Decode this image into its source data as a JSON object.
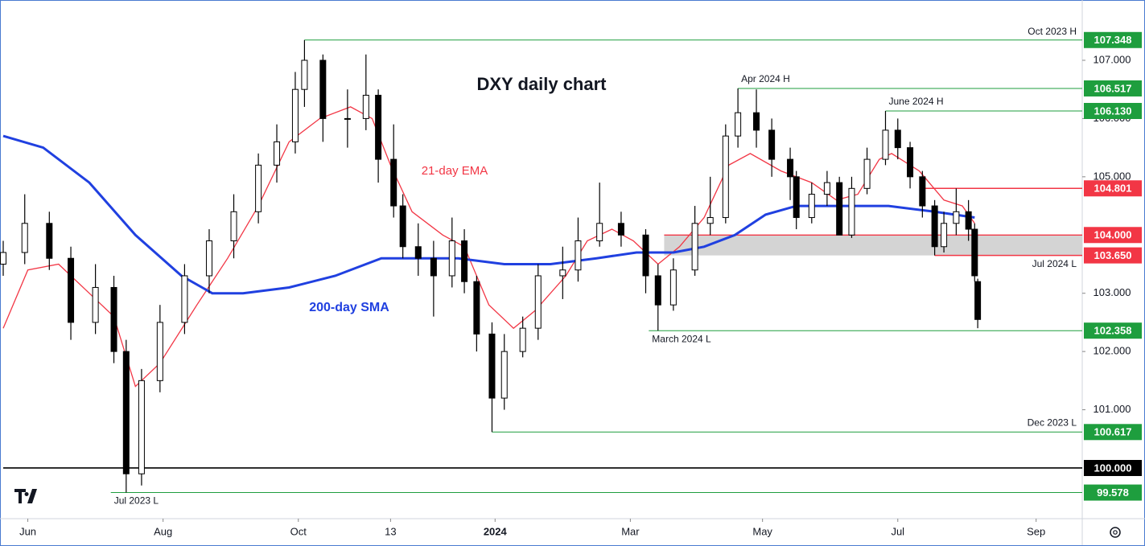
{
  "chart_data": {
    "type": "candlestick",
    "title": "DXY daily chart",
    "xlim": [
      -8,
      343
    ],
    "ylim": [
      99.13,
      107.98
    ],
    "xticks": [
      {
        "value": 0,
        "label": "Jun"
      },
      {
        "value": 44,
        "label": "Aug"
      },
      {
        "value": 88,
        "label": "Oct"
      },
      {
        "value": 118,
        "label": "13"
      },
      {
        "value": 152,
        "label": "2024"
      },
      {
        "value": 196,
        "label": "Mar"
      },
      {
        "value": 239,
        "label": "May"
      },
      {
        "value": 283,
        "label": "Jul"
      },
      {
        "value": 328,
        "label": "Sep"
      }
    ],
    "yticks": [
      {
        "value": 101,
        "label": "101.000"
      },
      {
        "value": 102,
        "label": "102.000"
      },
      {
        "value": 103,
        "label": "103.000"
      },
      {
        "value": 105,
        "label": "105.000"
      },
      {
        "value": 106,
        "label": "106.000"
      },
      {
        "value": 107,
        "label": "107.000"
      }
    ],
    "up_color": "#ffffff",
    "down_color": "#000000",
    "x": [
      -8,
      -1,
      7,
      14,
      22,
      28,
      32,
      37,
      43,
      51,
      59,
      67,
      75,
      81,
      87,
      90,
      96,
      104,
      110,
      114,
      119,
      122,
      127,
      132,
      138,
      142,
      146,
      151,
      155,
      161,
      166,
      174,
      179,
      186,
      193,
      201,
      205,
      210,
      217,
      222,
      227,
      231,
      237,
      242,
      248,
      250,
      255,
      260,
      264,
      268,
      273,
      279,
      283,
      287,
      291,
      295,
      298,
      302,
      306,
      308,
      309
    ],
    "open": [
      103.5,
      103.7,
      104.2,
      103.6,
      102.5,
      103.1,
      102.0,
      99.9,
      101.5,
      102.5,
      103.3,
      103.9,
      104.4,
      105.2,
      105.6,
      106.5,
      107.0,
      106.0,
      106.0,
      106.4,
      105.3,
      104.5,
      103.8,
      103.6,
      103.3,
      103.9,
      103.2,
      102.3,
      101.2,
      102.0,
      102.4,
      103.3,
      103.4,
      103.9,
      104.2,
      104.0,
      103.3,
      102.8,
      103.4,
      104.2,
      104.3,
      105.7,
      106.1,
      105.8,
      105.3,
      105.0,
      104.3,
      104.7,
      104.9,
      104.0,
      104.8,
      105.3,
      105.8,
      105.5,
      105.0,
      104.5,
      103.8,
      104.2,
      104.4,
      104.1,
      103.2
    ],
    "high": [
      103.9,
      104.7,
      104.4,
      103.8,
      103.5,
      103.3,
      102.2,
      101.7,
      102.8,
      103.5,
      104.1,
      104.7,
      105.4,
      105.9,
      106.8,
      107.348,
      107.1,
      106.5,
      107.1,
      106.5,
      105.9,
      104.7,
      104.2,
      103.9,
      104.3,
      104.1,
      103.3,
      102.5,
      102.3,
      102.6,
      103.5,
      103.8,
      104.3,
      104.9,
      104.4,
      104.1,
      103.5,
      103.6,
      104.5,
      105.0,
      105.9,
      106.517,
      106.5,
      106.0,
      105.5,
      105.1,
      104.9,
      105.1,
      105.0,
      105.0,
      105.5,
      106.13,
      106.0,
      105.6,
      105.1,
      104.6,
      104.4,
      104.8,
      104.6,
      104.2,
      103.25
    ],
    "low": [
      103.3,
      103.5,
      103.4,
      102.2,
      102.3,
      101.8,
      99.578,
      99.7,
      101.3,
      102.3,
      103.0,
      103.6,
      104.2,
      104.9,
      105.4,
      106.2,
      105.6,
      105.5,
      105.8,
      104.9,
      104.3,
      103.6,
      103.3,
      102.6,
      103.1,
      103.0,
      102.0,
      100.617,
      101.0,
      101.9,
      102.2,
      102.9,
      103.2,
      103.8,
      103.8,
      103.0,
      102.358,
      102.7,
      103.3,
      104.0,
      104.2,
      105.5,
      105.5,
      105.0,
      104.6,
      104.1,
      104.2,
      104.5,
      104.0,
      103.95,
      104.7,
      105.2,
      105.3,
      104.8,
      104.3,
      103.65,
      103.7,
      104.0,
      103.9,
      103.2,
      102.4
    ],
    "close": [
      103.7,
      104.2,
      103.6,
      102.5,
      103.1,
      102.0,
      99.9,
      101.5,
      102.5,
      103.3,
      103.9,
      104.4,
      105.2,
      105.6,
      106.5,
      107.0,
      106.0,
      106.0,
      106.4,
      105.3,
      104.5,
      103.8,
      103.6,
      103.3,
      103.9,
      103.2,
      102.3,
      101.2,
      102.0,
      102.4,
      103.3,
      103.4,
      103.9,
      104.2,
      104.0,
      103.3,
      102.8,
      103.4,
      104.2,
      104.3,
      105.7,
      106.1,
      105.8,
      105.3,
      105.0,
      104.3,
      104.7,
      104.9,
      104.0,
      104.8,
      105.3,
      105.8,
      105.5,
      105.0,
      104.5,
      103.8,
      104.2,
      104.4,
      104.1,
      103.3,
      102.55
    ],
    "series": [
      {
        "name": "21-day EMA",
        "color": "#f23645",
        "x": [
          -8,
          0,
          10,
          20,
          28,
          35,
          43,
          55,
          65,
          75,
          85,
          95,
          105,
          112,
          118,
          125,
          135,
          142,
          150,
          158,
          165,
          175,
          182,
          190,
          197,
          205,
          212,
          220,
          228,
          235,
          245,
          255,
          263,
          270,
          277,
          281,
          290,
          298,
          304,
          308
        ],
        "values": [
          102.4,
          103.4,
          103.5,
          103.0,
          102.6,
          101.4,
          101.8,
          102.8,
          103.6,
          104.5,
          105.6,
          106.0,
          106.2,
          106.0,
          105.2,
          104.4,
          104.0,
          103.8,
          102.8,
          102.4,
          102.7,
          103.3,
          103.9,
          104.1,
          103.9,
          103.5,
          103.8,
          104.3,
          105.2,
          105.4,
          105.1,
          104.9,
          104.6,
          104.7,
          105.3,
          105.4,
          105.1,
          104.6,
          104.5,
          104.2
        ]
      },
      {
        "name": "200-day SMA",
        "color": "#2040e0",
        "x": [
          -8,
          5,
          20,
          35,
          50,
          60,
          70,
          85,
          100,
          115,
          125,
          140,
          155,
          170,
          185,
          198,
          210,
          220,
          230,
          240,
          250,
          265,
          280,
          295,
          308
        ],
        "values": [
          105.7,
          105.5,
          104.9,
          104.0,
          103.3,
          103.0,
          103.0,
          103.1,
          103.3,
          103.6,
          103.6,
          103.6,
          103.5,
          103.5,
          103.6,
          103.7,
          103.7,
          103.8,
          104.0,
          104.35,
          104.5,
          104.5,
          104.5,
          104.4,
          104.3
        ]
      }
    ],
    "zone": {
      "from": 207,
      "low": 103.65,
      "high": 104.0,
      "color": "#cfcfcf"
    },
    "levels": [
      {
        "value": 107.348,
        "value_label": "107.348",
        "label": "Oct 2023 H",
        "from": 90,
        "color": "#1e9e3e"
      },
      {
        "value": 106.517,
        "value_label": "106.517",
        "label": "Apr 2024 H",
        "from": 231,
        "color": "#1e9e3e"
      },
      {
        "value": 106.13,
        "value_label": "106.130",
        "label": "June 2024 H",
        "from": 279,
        "color": "#1e9e3e"
      },
      {
        "value": 104.801,
        "value_label": "104.801",
        "from": 290.7,
        "color": "#f23645"
      },
      {
        "value": 104.0,
        "value_label": "104.000",
        "from": 207,
        "color": "#f23645"
      },
      {
        "value": 103.65,
        "value_label": "103.650",
        "label": "Jul 2024 L",
        "from": 295,
        "color": "#f23645"
      },
      {
        "value": 102.358,
        "value_label": "102.358",
        "label": "March 2024 L",
        "from": 202,
        "color": "#1e9e3e"
      },
      {
        "value": 100.617,
        "value_label": "100.617",
        "label": "Dec 2023 L",
        "from": 151,
        "color": "#1e9e3e"
      },
      {
        "value": 100.0,
        "value_label": "100.000",
        "from": -8,
        "color": "#000000"
      },
      {
        "value": 99.578,
        "value_label": "99.578",
        "label": "Jul 2023 L",
        "from": 27,
        "color": "#1e9e3e"
      }
    ]
  }
}
